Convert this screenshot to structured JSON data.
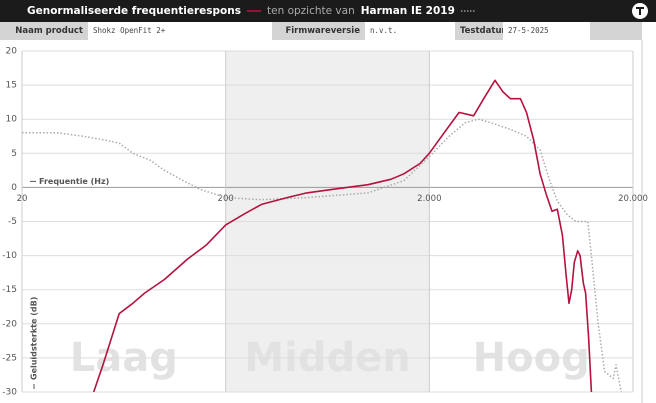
{
  "info": [
    {
      "label": "Naam product",
      "value": "Shokz OpenFit 2+"
    },
    {
      "label": "Firmwareversie",
      "value": "n.v.t."
    },
    {
      "label": "Testdatum",
      "value": "27-5-2025"
    }
  ],
  "chart_data": {
    "type": "line",
    "title": "Genormaliseerde frequentierespons",
    "comparison": "ten opzichte van",
    "xlabel": "Frequentie (Hz)",
    "ylabel": "Geluidsterkte (dB)",
    "log_x": true,
    "grid": true,
    "xlim": [
      20,
      20000
    ],
    "xticks": [
      20,
      200,
      {
        "value": 2000,
        "label": "2.000"
      },
      {
        "value": 20000,
        "label": "20.000"
      }
    ],
    "ylim": [
      -30,
      20
    ],
    "yticks": [
      -30,
      -25,
      -20,
      -15,
      -10,
      -5,
      0,
      5,
      10,
      15,
      20
    ],
    "bands": [
      {
        "label": "Laag",
        "range": [
          20,
          200
        ]
      },
      {
        "label": "Midden",
        "range": [
          200,
          2000
        ],
        "shaded": true
      },
      {
        "label": "Hoog",
        "range": [
          2000,
          20000
        ]
      }
    ],
    "series": [
      {
        "color": "#b5123f",
        "style": "solid",
        "x": [
          45,
          50,
          60,
          70,
          80,
          100,
          130,
          160,
          200,
          250,
          300,
          400,
          500,
          700,
          1000,
          1300,
          1500,
          1800,
          2000,
          2500,
          2800,
          3300,
          3700,
          4200,
          4600,
          5000,
          5600,
          6000,
          6500,
          7000,
          7500,
          8000,
          8500,
          9000,
          9400,
          9700,
          10000,
          10300,
          10700,
          11000,
          11400,
          11700,
          12100,
          12500
        ],
        "values": [
          -30,
          -26,
          -18.5,
          -17,
          -15.5,
          -13.5,
          -10.5,
          -8.5,
          -5.5,
          -3.8,
          -2.5,
          -1.5,
          -0.8,
          -0.2,
          0.4,
          1.2,
          2,
          3.5,
          5,
          9,
          11,
          10.5,
          13,
          15.7,
          14,
          13,
          13,
          11,
          7,
          2,
          -1,
          -3.5,
          -3.2,
          -7,
          -13,
          -17,
          -15,
          -11,
          -9.3,
          -10,
          -14,
          -15.5,
          -22,
          -30
        ]
      },
      {
        "name": "Harman IE 2019",
        "color": "#aaaaaa",
        "style": "dotted",
        "x": [
          20,
          30,
          40,
          50,
          60,
          70,
          85,
          100,
          120,
          150,
          200,
          300,
          500,
          1000,
          1500,
          2000,
          2500,
          3000,
          3500,
          4000,
          5000,
          6000,
          7000,
          7800,
          8500,
          9500,
          10500,
          12000,
          12500,
          13500,
          14500,
          16000,
          16500,
          17500
        ],
        "values": [
          8,
          8,
          7.5,
          7,
          6.5,
          5,
          4,
          2.5,
          1.2,
          -0.3,
          -1.5,
          -1.8,
          -1.5,
          -0.8,
          1,
          4.5,
          7.5,
          9.5,
          10,
          9.5,
          8.5,
          7.5,
          5.5,
          1,
          -2,
          -4,
          -5,
          -5,
          -10,
          -20,
          -27,
          -28,
          -26,
          -30
        ]
      }
    ]
  }
}
